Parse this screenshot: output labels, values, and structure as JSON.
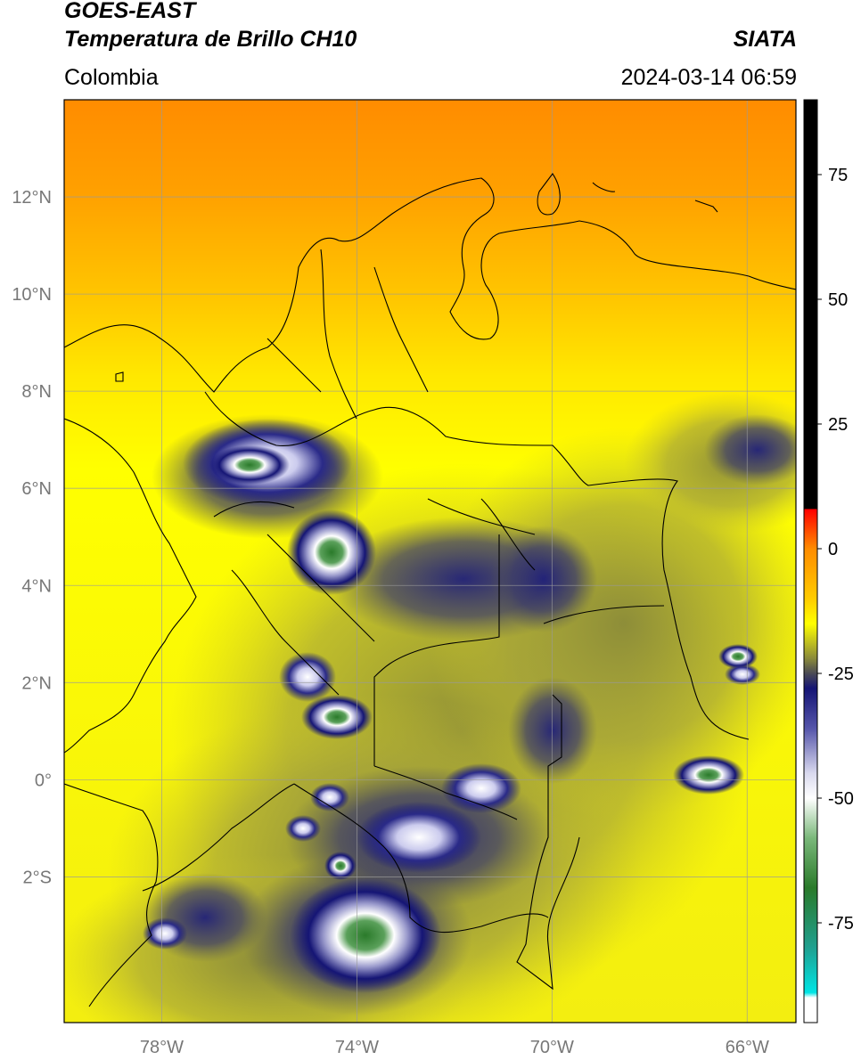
{
  "header": {
    "satellite": "GOES-EAST",
    "product": "Temperatura de Brillo CH10",
    "agency": "SIATA",
    "region": "Colombia",
    "datetime": "2024-03-14 06:59"
  },
  "map": {
    "extent_lon": [
      -80,
      -65
    ],
    "extent_lat": [
      -5,
      14
    ],
    "lat_ticks": [
      {
        "value": 12,
        "label": "12°N"
      },
      {
        "value": 10,
        "label": "10°N"
      },
      {
        "value": 8,
        "label": "8°N"
      },
      {
        "value": 6,
        "label": "6°N"
      },
      {
        "value": 4,
        "label": "4°N"
      },
      {
        "value": 2,
        "label": "2°N"
      },
      {
        "value": 0,
        "label": "0°"
      },
      {
        "value": -2,
        "label": "2°S"
      }
    ],
    "lon_ticks": [
      {
        "value": -78,
        "label": "78°W"
      },
      {
        "value": -74,
        "label": "74°W"
      },
      {
        "value": -70,
        "label": "70°W"
      },
      {
        "value": -66,
        "label": "66°W"
      }
    ]
  },
  "colorbar": {
    "range": [
      -95,
      90
    ],
    "ticks": [
      {
        "value": 75,
        "label": "75"
      },
      {
        "value": 50,
        "label": "50"
      },
      {
        "value": 25,
        "label": "25"
      },
      {
        "value": 0,
        "label": "0"
      },
      {
        "value": -25,
        "label": "-25"
      },
      {
        "value": -50,
        "label": "-50"
      },
      {
        "value": -75,
        "label": "-75"
      }
    ],
    "stops": [
      {
        "value": 90,
        "color": "#000000"
      },
      {
        "value": 8,
        "color": "#000000"
      },
      {
        "value": 7.9,
        "color": "#ff0000"
      },
      {
        "value": 0,
        "color": "#ff8c00"
      },
      {
        "value": -10,
        "color": "#ffcc00"
      },
      {
        "value": -15,
        "color": "#ffff00"
      },
      {
        "value": -22,
        "color": "#8a8a3a"
      },
      {
        "value": -25,
        "color": "#4a4a55"
      },
      {
        "value": -28,
        "color": "#151575"
      },
      {
        "value": -36,
        "color": "#5555aa"
      },
      {
        "value": -45,
        "color": "#d9d9ee"
      },
      {
        "value": -50,
        "color": "#ffffff"
      },
      {
        "value": -58,
        "color": "#7ab87a"
      },
      {
        "value": -68,
        "color": "#2a7a2a"
      },
      {
        "value": -80,
        "color": "#20a090"
      },
      {
        "value": -89,
        "color": "#00e5e5"
      },
      {
        "value": -90,
        "color": "#ffffff"
      },
      {
        "value": -95,
        "color": "#ffffff"
      }
    ]
  }
}
